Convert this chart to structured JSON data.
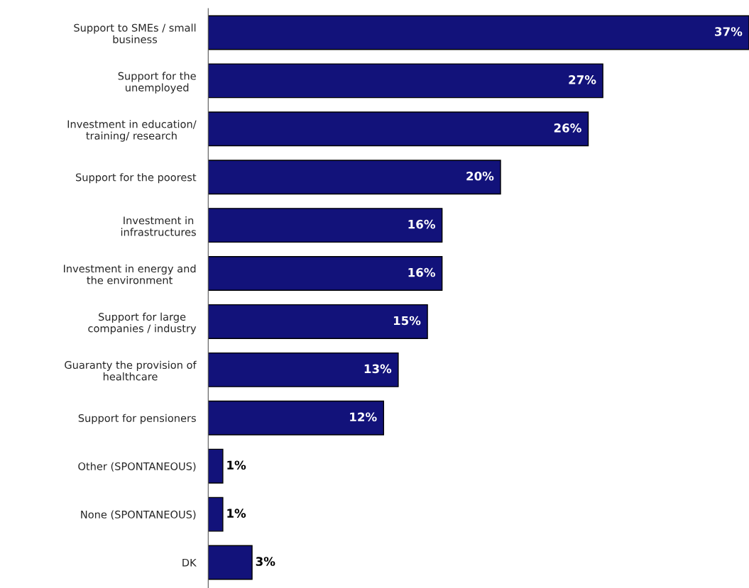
{
  "chart_data": {
    "type": "bar",
    "orientation": "horizontal",
    "categories": [
      "Support to SMEs / small\nbusiness",
      "Support for the\nunemployed",
      "Investment in education/\ntraining/ research",
      "Support for the poorest",
      "Investment in\ninfrastructures",
      "Investment in energy and\nthe environment",
      "Support for large\ncompanies / industry",
      "Guaranty the provision of\nhealthcare",
      "Support for pensioners",
      "Other (SPONTANEOUS)",
      "None (SPONTANEOUS)",
      "DK"
    ],
    "values": [
      37,
      27,
      26,
      20,
      16,
      16,
      15,
      13,
      12,
      1,
      1,
      3
    ],
    "value_labels": [
      "37%",
      "27%",
      "26%",
      "20%",
      "16%",
      "16%",
      "15%",
      "13%",
      "12%",
      "1%",
      "1%",
      "3%"
    ],
    "color": "#12127a",
    "grid": false,
    "legend": false
  }
}
